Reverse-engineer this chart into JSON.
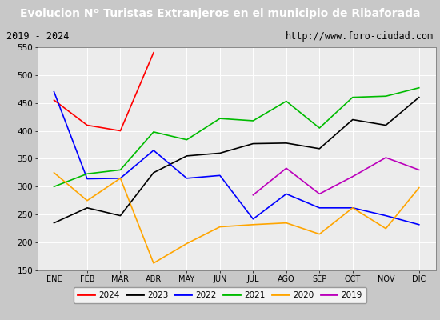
{
  "title": "Evolucion Nº Turistas Extranjeros en el municipio de Ribaforada",
  "subtitle_left": "2019 - 2024",
  "subtitle_right": "http://www.foro-ciudad.com",
  "months": [
    "ENE",
    "FEB",
    "MAR",
    "ABR",
    "MAY",
    "JUN",
    "JUL",
    "AGO",
    "SEP",
    "OCT",
    "NOV",
    "DIC"
  ],
  "ylim": [
    150,
    550
  ],
  "yticks": [
    150,
    200,
    250,
    300,
    350,
    400,
    450,
    500,
    550
  ],
  "series": {
    "2024": {
      "color": "#ff0000",
      "data": [
        455,
        410,
        400,
        540,
        null,
        null,
        null,
        null,
        null,
        null,
        null,
        null
      ]
    },
    "2023": {
      "color": "#000000",
      "data": [
        235,
        262,
        248,
        325,
        355,
        360,
        377,
        378,
        368,
        420,
        410,
        460
      ]
    },
    "2022": {
      "color": "#0000ff",
      "data": [
        470,
        314,
        315,
        365,
        315,
        320,
        242,
        287,
        262,
        262,
        248,
        232
      ]
    },
    "2021": {
      "color": "#00bb00",
      "data": [
        300,
        323,
        330,
        398,
        384,
        422,
        418,
        453,
        405,
        460,
        462,
        477
      ]
    },
    "2020": {
      "color": "#ffa500",
      "data": [
        325,
        275,
        315,
        163,
        198,
        228,
        232,
        235,
        215,
        262,
        225,
        298
      ]
    },
    "2019": {
      "color": "#bb00bb",
      "data": [
        null,
        null,
        null,
        null,
        null,
        null,
        285,
        333,
        287,
        318,
        352,
        330
      ]
    }
  },
  "legend_order": [
    "2024",
    "2023",
    "2022",
    "2021",
    "2020",
    "2019"
  ],
  "title_bg": "#4499cc",
  "title_fg": "#ffffff",
  "subtitle_bg": "#e0e0e0",
  "plot_bg": "#ececec",
  "grid_color": "#ffffff",
  "outer_bg": "#c8c8c8"
}
